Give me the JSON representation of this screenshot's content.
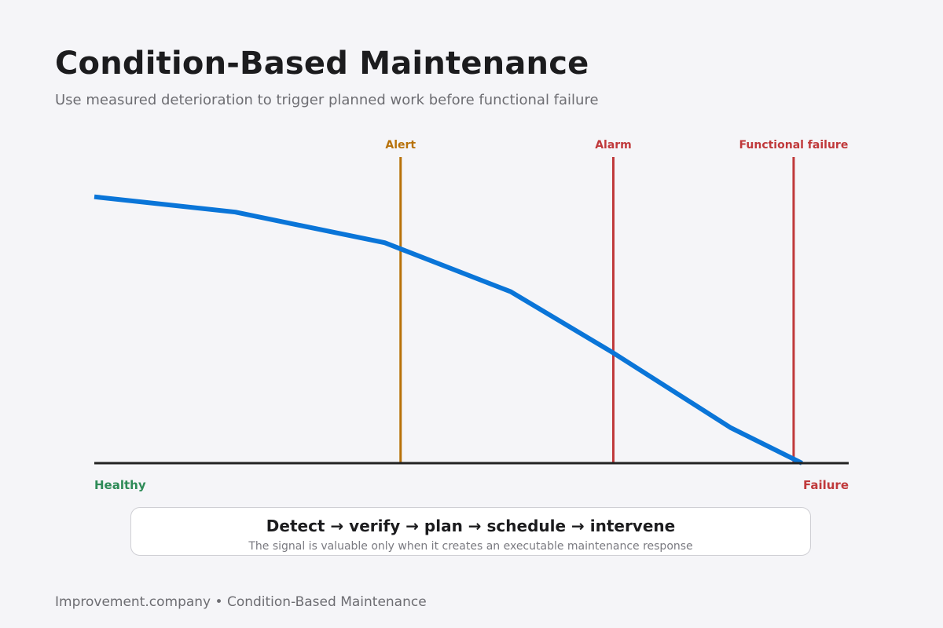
{
  "header": {
    "title": "Condition-Based Maintenance",
    "subtitle": "Use measured deterioration to trigger planned work before functional failure"
  },
  "axis": {
    "start_label": "Healthy",
    "end_label": "Failure"
  },
  "chart_data": {
    "type": "line",
    "series": [
      {
        "name": "",
        "color": "#0a75d8",
        "points": [
          {
            "t": 0.0,
            "condition": 0.87
          },
          {
            "t": 0.187,
            "condition": 0.82
          },
          {
            "t": 0.385,
            "condition": 0.72
          },
          {
            "t": 0.552,
            "condition": 0.56
          },
          {
            "t": 0.688,
            "condition": 0.36
          },
          {
            "t": 0.844,
            "condition": 0.115
          },
          {
            "t": 0.938,
            "condition": 0.0
          }
        ]
      }
    ],
    "thresholds": [
      {
        "label": "Alert",
        "t": 0.406,
        "color": "#b8720a"
      },
      {
        "label": "Alarm",
        "t": 0.688,
        "color": "#c0393b"
      },
      {
        "label": "Functional failure",
        "t": 0.927,
        "color": "#c0393b"
      }
    ],
    "axis_color": "#222222",
    "grid": false
  },
  "callout": {
    "headline": "Detect → verify → plan → schedule → intervene",
    "note": "The signal is valuable only when it creates an executable maintenance response"
  },
  "footer": {
    "text": "Improvement.company • Condition-Based Maintenance"
  }
}
